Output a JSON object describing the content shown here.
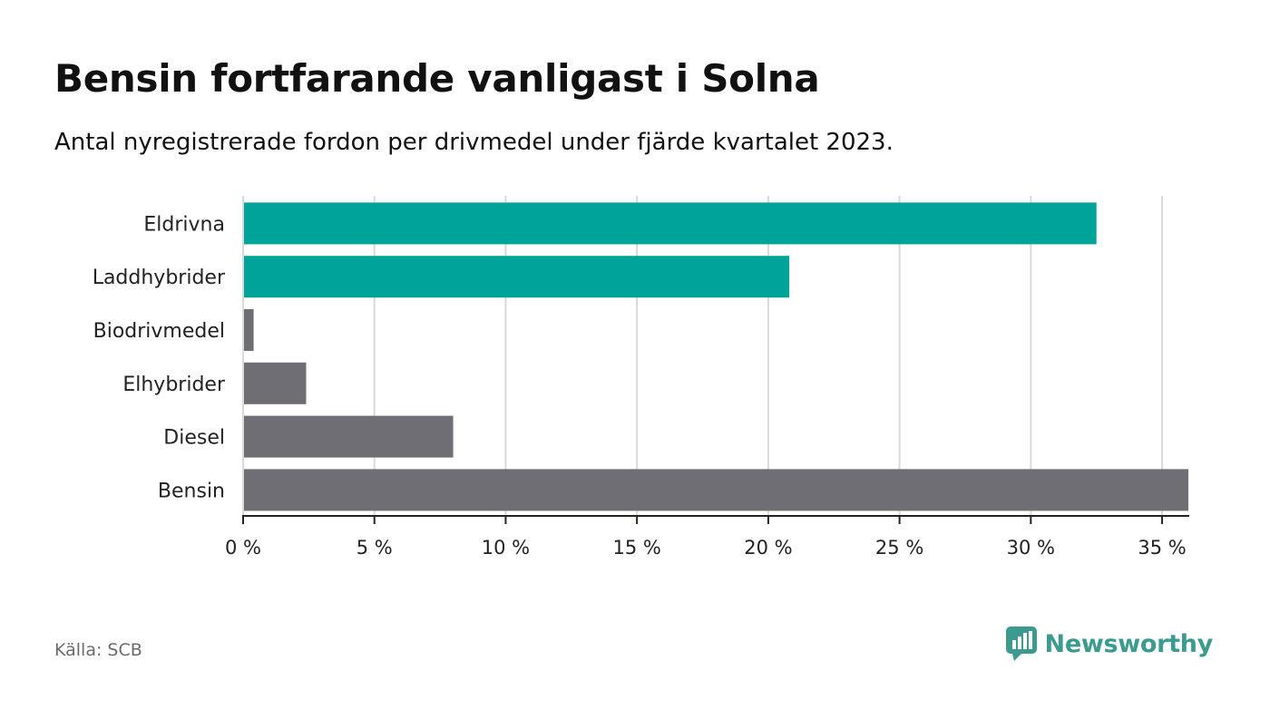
{
  "title": "Bensin fortfarande vanligast i Solna",
  "subtitle": "Antal nyregistrerade fordon per drivmedel under fjärde kvartalet 2023.",
  "source": "Källa: SCB",
  "brand": {
    "name": "Newsworthy",
    "icon": "newsworthy-logo-icon",
    "color": "#3d9a8f"
  },
  "colors": {
    "highlight": "#00a398",
    "default": "#6e6e74",
    "grid": "#d9d9d9",
    "axis": "#222222"
  },
  "chart_data": {
    "type": "bar",
    "orientation": "horizontal",
    "title": "Bensin fortfarande vanligast i Solna",
    "subtitle": "Antal nyregistrerade fordon per drivmedel under fjärde kvartalet 2023.",
    "xlabel": "",
    "ylabel": "",
    "unit": "%",
    "xlim": [
      0,
      36
    ],
    "ticks": [
      0,
      5,
      10,
      15,
      20,
      25,
      30,
      35
    ],
    "tick_labels": [
      "0 %",
      "5 %",
      "10 %",
      "15 %",
      "20 %",
      "25 %",
      "30 %",
      "35 %"
    ],
    "grid": true,
    "categories": [
      "Eldrivna",
      "Laddhybrider",
      "Biodrivmedel",
      "Elhybrider",
      "Diesel",
      "Bensin"
    ],
    "values": [
      32.5,
      20.8,
      0.4,
      2.4,
      8.0,
      36.0
    ],
    "highlighted": [
      true,
      true,
      false,
      false,
      false,
      false
    ]
  }
}
